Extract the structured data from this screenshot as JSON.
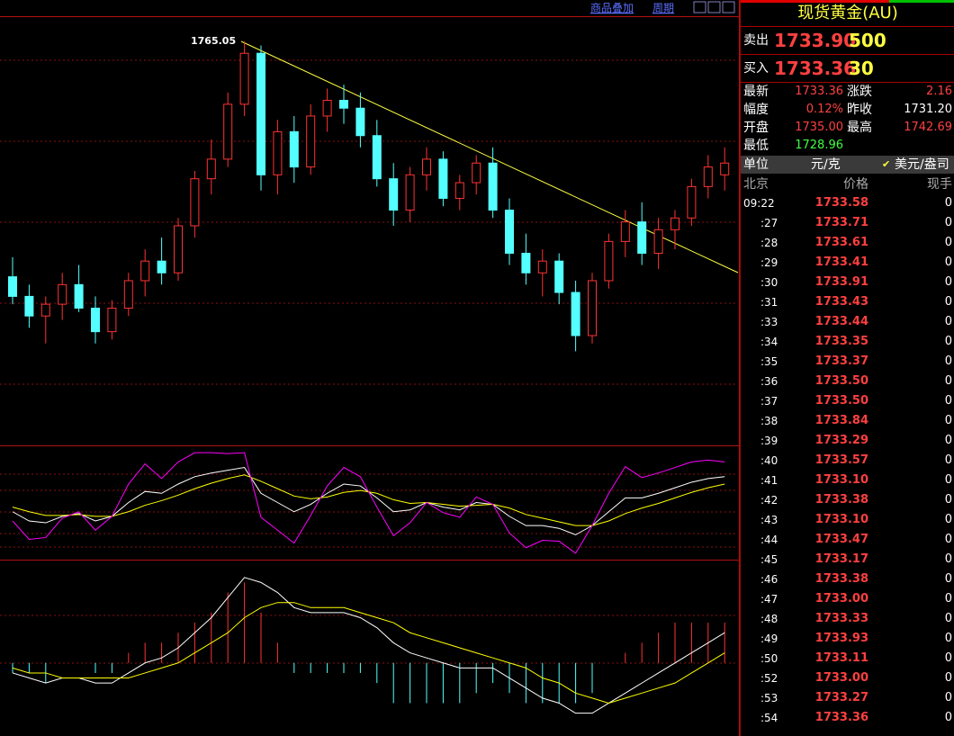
{
  "toolbar": {
    "overlay": "商品叠加",
    "period": "周期"
  },
  "chart_data": {
    "type": "candlestick",
    "peak_label": "1765.05",
    "ylim": [
      1662,
      1771
    ],
    "open": [
      1705,
      1700,
      1695,
      1698,
      1703,
      1697,
      1691,
      1697,
      1704,
      1709,
      1706,
      1718,
      1730,
      1735,
      1749,
      1762,
      1731,
      1742,
      1733,
      1746,
      1750,
      1748,
      1741,
      1730,
      1722,
      1731,
      1735,
      1725,
      1729,
      1734,
      1722,
      1711,
      1706,
      1709,
      1701,
      1690,
      1704,
      1714,
      1719,
      1711,
      1717,
      1720,
      1728,
      1731
    ],
    "high": [
      1710,
      1703,
      1700,
      1706,
      1708,
      1700,
      1699,
      1706,
      1712,
      1715,
      1720,
      1732,
      1740,
      1752,
      1765.05,
      1764,
      1745,
      1746,
      1749,
      1753,
      1754,
      1752,
      1745,
      1734,
      1733,
      1738,
      1737,
      1731,
      1736,
      1738,
      1725,
      1716,
      1712,
      1711,
      1704,
      1706,
      1716,
      1722,
      1724,
      1720,
      1722,
      1730,
      1736,
      1738
    ],
    "low": [
      1698,
      1692,
      1688,
      1694,
      1696,
      1688,
      1689,
      1695,
      1700,
      1703,
      1704,
      1715,
      1726,
      1733,
      1746,
      1727,
      1726,
      1729,
      1731,
      1742,
      1744,
      1738,
      1728,
      1718,
      1719,
      1727,
      1723,
      1722,
      1726,
      1720,
      1708,
      1703,
      1700,
      1698,
      1686,
      1688,
      1702,
      1710,
      1708,
      1707,
      1712,
      1718,
      1725,
      1727
    ],
    "close": [
      1700,
      1695,
      1698,
      1703,
      1697,
      1691,
      1697,
      1704,
      1709,
      1706,
      1718,
      1730,
      1735,
      1749,
      1762,
      1731,
      1742,
      1733,
      1746,
      1750,
      1748,
      1741,
      1730,
      1722,
      1731,
      1735,
      1725,
      1729,
      1734,
      1722,
      1711,
      1706,
      1709,
      1701,
      1690,
      1704,
      1714,
      1719,
      1711,
      1717,
      1720,
      1728,
      1733,
      1734
    ],
    "up_color": "#ff3232",
    "down_color": "#54ffff",
    "kdj": {
      "ylim": [
        -10,
        110
      ],
      "series": [
        {
          "color": "#ffffff",
          "values": [
            40,
            30,
            28,
            35,
            38,
            30,
            35,
            50,
            62,
            60,
            70,
            78,
            82,
            85,
            88,
            60,
            50,
            40,
            48,
            60,
            70,
            68,
            55,
            40,
            42,
            50,
            45,
            42,
            50,
            48,
            35,
            25,
            25,
            22,
            15,
            25,
            40,
            55,
            55,
            60,
            66,
            72,
            76,
            78
          ]
        },
        {
          "color": "#ffff00",
          "values": [
            45,
            40,
            36,
            36,
            37,
            35,
            35,
            40,
            47,
            52,
            58,
            65,
            71,
            76,
            80,
            73,
            65,
            57,
            54,
            56,
            61,
            63,
            60,
            53,
            49,
            50,
            48,
            46,
            47,
            48,
            44,
            37,
            33,
            29,
            25,
            25,
            30,
            38,
            44,
            49,
            55,
            61,
            66,
            70
          ]
        },
        {
          "color": "#ff00ff",
          "values": [
            30,
            10,
            12,
            33,
            40,
            20,
            35,
            70,
            92,
            76,
            94,
            104,
            104,
            103,
            104,
            34,
            20,
            6,
            36,
            68,
            88,
            78,
            45,
            14,
            28,
            50,
            39,
            34,
            56,
            48,
            17,
            1,
            9,
            8,
            -5,
            25,
            60,
            89,
            77,
            82,
            88,
            94,
            96,
            94
          ]
        }
      ]
    },
    "macd": {
      "ylim": [
        -14,
        20
      ],
      "series": [
        {
          "color": "#ffffff",
          "values": [
            -2,
            -3,
            -4,
            -3,
            -3,
            -4,
            -4,
            -2,
            0,
            1,
            3,
            6,
            9,
            13,
            17,
            16,
            14,
            11,
            10,
            10,
            10,
            9,
            7,
            4,
            2,
            1,
            0,
            -1,
            -1,
            -1,
            -3,
            -5,
            -7,
            -8,
            -10,
            -10,
            -8,
            -6,
            -4,
            -2,
            0,
            2,
            4,
            6
          ]
        },
        {
          "color": "#ffff00",
          "values": [
            -1,
            -2,
            -2,
            -3,
            -3,
            -3,
            -3,
            -3,
            -2,
            -1,
            0,
            2,
            4,
            6,
            9,
            11,
            12,
            12,
            11,
            11,
            11,
            10,
            9,
            8,
            6,
            5,
            4,
            3,
            2,
            1,
            0,
            -1,
            -3,
            -4,
            -6,
            -7,
            -8,
            -7,
            -6,
            -5,
            -4,
            -2,
            0,
            2
          ]
        }
      ],
      "histogram": [
        -2,
        -2,
        -4,
        0,
        0,
        -2,
        -2,
        2,
        4,
        4,
        6,
        8,
        10,
        14,
        16,
        10,
        4,
        -2,
        -2,
        -2,
        -2,
        -2,
        -4,
        -8,
        -8,
        -8,
        -8,
        -8,
        -6,
        -4,
        -6,
        -8,
        -8,
        -8,
        -8,
        -6,
        0,
        2,
        4,
        6,
        8,
        8,
        8,
        8
      ]
    }
  },
  "quote": {
    "title": "现货黄金(AU)",
    "sell": {
      "label": "卖出",
      "price": "1733.90",
      "volume": "500"
    },
    "buy": {
      "label": "买入",
      "price": "1733.36",
      "volume": "30"
    },
    "stats": [
      [
        "最新",
        "1733.36",
        "涨跌",
        "2.16"
      ],
      [
        "幅度",
        "0.12%",
        "昨收",
        "1731.20"
      ],
      [
        "开盘",
        "1735.00",
        "最高",
        "1742.69"
      ],
      [
        "最低",
        "1728.96"
      ]
    ],
    "unit": {
      "label": "单位",
      "cny": "元/克",
      "usd": "美元/盎司"
    }
  },
  "ticks": {
    "header": [
      "北京",
      "价格",
      "现手"
    ],
    "rows": [
      [
        "09:22",
        "1733.58",
        "0"
      ],
      [
        ":27",
        "1733.71",
        "0"
      ],
      [
        ":28",
        "1733.61",
        "0"
      ],
      [
        ":29",
        "1733.41",
        "0"
      ],
      [
        ":30",
        "1733.91",
        "0"
      ],
      [
        ":31",
        "1733.43",
        "0"
      ],
      [
        ":33",
        "1733.44",
        "0"
      ],
      [
        ":34",
        "1733.35",
        "0"
      ],
      [
        ":35",
        "1733.37",
        "0"
      ],
      [
        ":36",
        "1733.50",
        "0"
      ],
      [
        ":37",
        "1733.50",
        "0"
      ],
      [
        ":38",
        "1733.84",
        "0"
      ],
      [
        ":39",
        "1733.29",
        "0"
      ],
      [
        ":40",
        "1733.57",
        "0"
      ],
      [
        ":41",
        "1733.10",
        "0"
      ],
      [
        ":42",
        "1733.38",
        "0"
      ],
      [
        ":43",
        "1733.10",
        "0"
      ],
      [
        ":44",
        "1733.47",
        "0"
      ],
      [
        ":45",
        "1733.17",
        "0"
      ],
      [
        ":46",
        "1733.38",
        "0"
      ],
      [
        ":47",
        "1733.00",
        "0"
      ],
      [
        ":48",
        "1733.33",
        "0"
      ],
      [
        ":49",
        "1733.93",
        "0"
      ],
      [
        ":50",
        "1733.11",
        "0"
      ],
      [
        ":52",
        "1733.00",
        "0"
      ],
      [
        ":53",
        "1733.27",
        "0"
      ],
      [
        ":54",
        "1733.36",
        "0"
      ]
    ]
  }
}
